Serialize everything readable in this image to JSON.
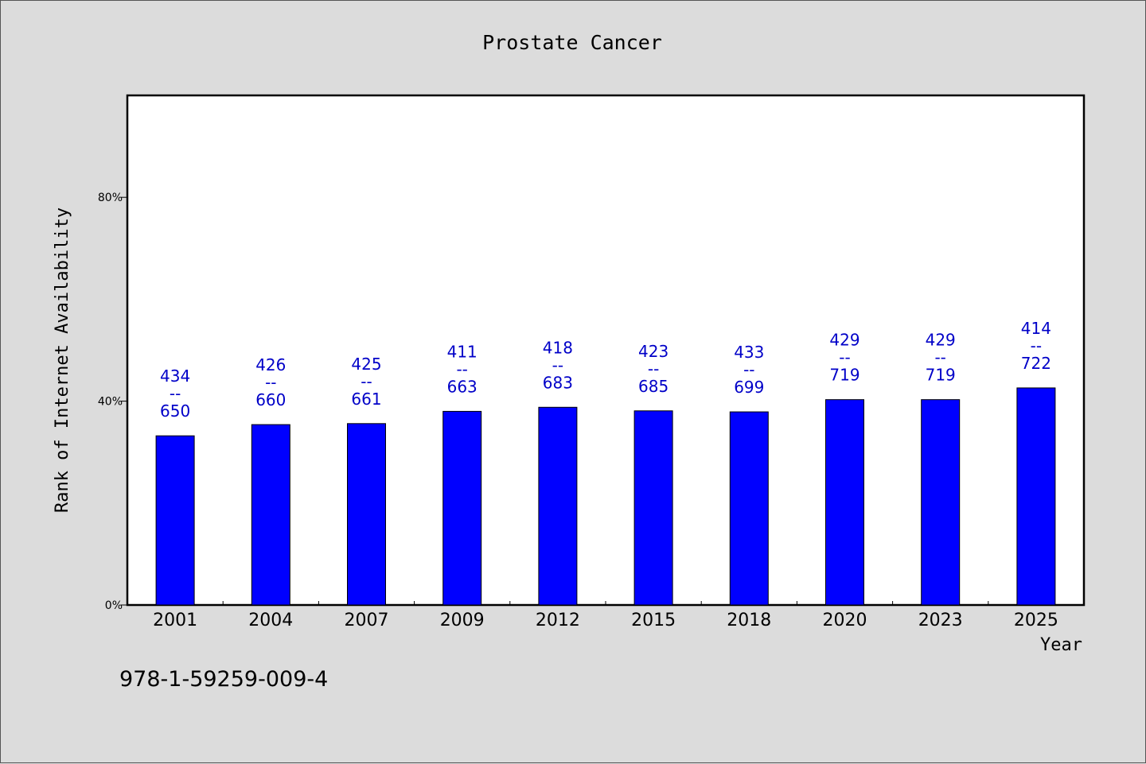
{
  "chart_data": {
    "type": "bar",
    "title": "Prostate Cancer",
    "xlabel": "Year",
    "ylabel": "Rank of Internet Availability",
    "categories": [
      "2001",
      "2004",
      "2007",
      "2009",
      "2012",
      "2015",
      "2018",
      "2020",
      "2023",
      "2025"
    ],
    "values": [
      33.2,
      35.4,
      35.6,
      38.0,
      38.8,
      38.1,
      37.9,
      40.3,
      40.3,
      42.6
    ],
    "labels_top": [
      "434",
      "426",
      "425",
      "411",
      "418",
      "423",
      "433",
      "429",
      "429",
      "414"
    ],
    "labels_sep": "--",
    "labels_bottom": [
      "650",
      "660",
      "661",
      "663",
      "683",
      "685",
      "699",
      "719",
      "719",
      "722"
    ],
    "yticks": [
      0,
      40,
      80
    ],
    "ytick_labels": [
      "0%",
      "40%",
      "80%"
    ],
    "ylim": [
      0,
      100
    ],
    "bar_color": "#0000ff",
    "label_color": "#0000c8",
    "grid": false,
    "legend": "none"
  },
  "footer": {
    "isbn": "978-1-59259-009-4"
  }
}
